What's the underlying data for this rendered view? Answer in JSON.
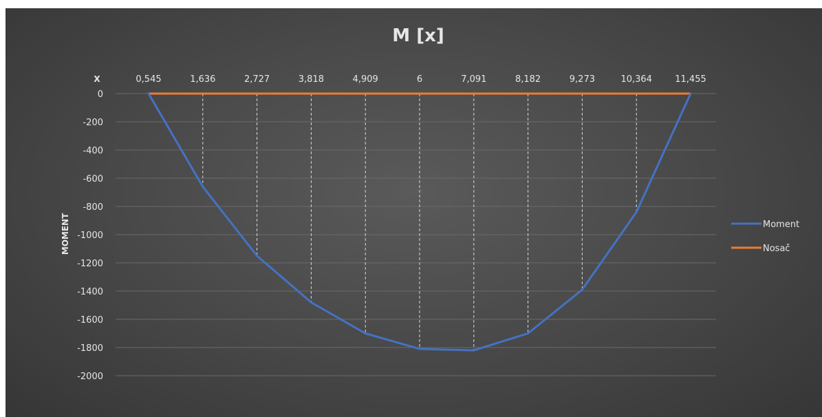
{
  "chart_data": {
    "type": "line",
    "title": "M [x]",
    "xlabel": "X",
    "ylabel": "MOMENT",
    "categories": [
      "0,545",
      "1,636",
      "2,727",
      "3,818",
      "4,909",
      "6",
      "7,091",
      "8,182",
      "9,273",
      "10,364",
      "11,455"
    ],
    "series": [
      {
        "name": "Moment",
        "color": "#4472c4",
        "values": [
          0,
          -660,
          -1150,
          -1480,
          -1700,
          -1810,
          -1820,
          -1700,
          -1390,
          -840,
          0
        ]
      },
      {
        "name": "Nosač",
        "color": "#ed7d31",
        "values": [
          0,
          0,
          0,
          0,
          0,
          0,
          0,
          0,
          0,
          0,
          0
        ]
      }
    ],
    "ylim": [
      -2000,
      0
    ],
    "yticks": [
      0,
      -200,
      -400,
      -600,
      -800,
      -1000,
      -1200,
      -1400,
      -1600,
      -1800,
      -2000
    ],
    "x_axis_position": "top",
    "grid": true,
    "drop_lines": true,
    "legend_position": "right"
  }
}
